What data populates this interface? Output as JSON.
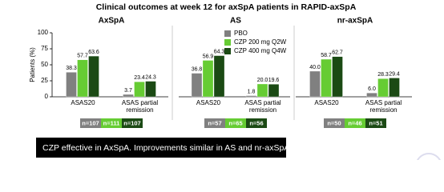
{
  "title": "Clinical outcomes at week 12 for axSpA patients in RAPID-axSpA",
  "legend": {
    "series": [
      {
        "name": "PBO",
        "color": "#808080"
      },
      {
        "name": "CZP 200 mg Q2W",
        "color": "#66cc33"
      },
      {
        "name": "CZP 400 mg Q4W",
        "color": "#1b4a14"
      }
    ]
  },
  "banner": "CZP effective in AxSpA. Improvements similar in AS and nr-axSpA",
  "chart_data": [
    {
      "type": "bar",
      "title": "AxSpA",
      "ylabel": "Patients (%)",
      "ylim": [
        0,
        100
      ],
      "yticks": [
        0,
        25,
        50,
        75,
        100
      ],
      "categories": [
        "ASAS20",
        "ASAS partial remission"
      ],
      "series": [
        {
          "values": [
            38.3,
            3.7
          ],
          "value_labels": [
            "38.3",
            "3.7"
          ]
        },
        {
          "values": [
            57.7,
            23.4
          ],
          "value_labels": [
            "57.7",
            "23.4"
          ]
        },
        {
          "values": [
            63.6,
            24.3
          ],
          "value_labels": [
            "63.6",
            "24.3"
          ]
        }
      ],
      "n_labels": [
        "n=107",
        "n=111",
        "n=107"
      ]
    },
    {
      "type": "bar",
      "title": "AS",
      "ylim": [
        0,
        100
      ],
      "categories": [
        "ASAS20",
        "ASAS partial remission"
      ],
      "series": [
        {
          "values": [
            36.8,
            1.8
          ],
          "value_labels": [
            "36.8",
            "1.8"
          ]
        },
        {
          "values": [
            56.9,
            20.0
          ],
          "value_labels": [
            "56.9",
            "20.0"
          ]
        },
        {
          "values": [
            64.3,
            19.6
          ],
          "value_labels": [
            "64.3",
            "19.6"
          ]
        }
      ],
      "n_labels": [
        "n=57",
        "n=65",
        "n=56"
      ]
    },
    {
      "type": "bar",
      "title": "nr-axSpA",
      "ylim": [
        0,
        100
      ],
      "categories": [
        "ASAS20",
        "ASAS partial remission"
      ],
      "series": [
        {
          "values": [
            40.0,
            6.0
          ],
          "value_labels": [
            "40.0",
            "6.0"
          ]
        },
        {
          "values": [
            58.7,
            28.3
          ],
          "value_labels": [
            "58.7",
            "28.3"
          ]
        },
        {
          "values": [
            62.7,
            29.4
          ],
          "value_labels": [
            "62.7",
            "29.4"
          ]
        }
      ],
      "n_labels": [
        "n=50",
        "n=46",
        "n=51"
      ]
    }
  ]
}
